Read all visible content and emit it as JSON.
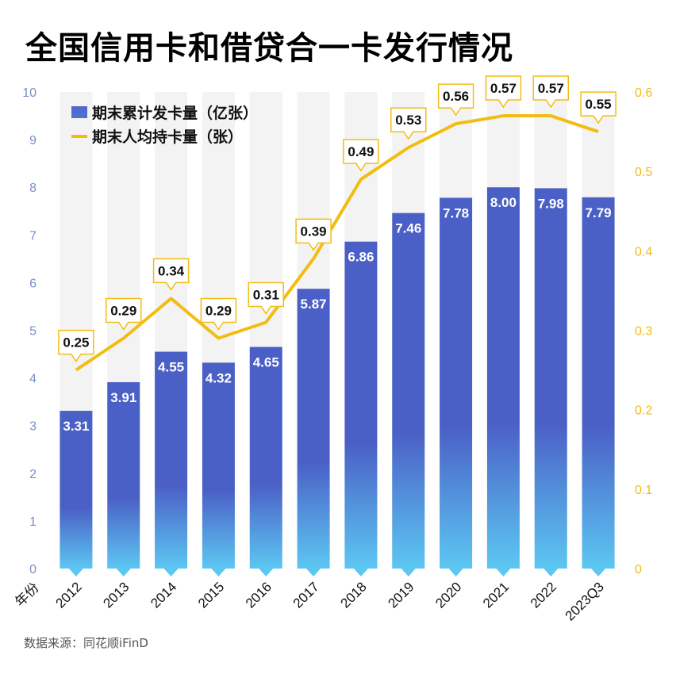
{
  "title": "全国信用卡和借贷合一卡发行情况",
  "source": "数据来源：同花顺iFinD",
  "colors": {
    "bar_top": "#4b60c6",
    "bar_bottom": "#5cc7f2",
    "line": "#f2bd13",
    "left_axis_text": "#7b8fc7",
    "right_axis_text": "#f2bd13",
    "stripe": "#f3f3f3"
  },
  "chart_data": {
    "type": "bar+line",
    "xlabel": "年份",
    "categories": [
      "2012",
      "2013",
      "2014",
      "2015",
      "2016",
      "2017",
      "2018",
      "2019",
      "2020",
      "2021",
      "2022",
      "2023Q3"
    ],
    "series": [
      {
        "name": "期末累计发卡量（亿张）",
        "type": "bar",
        "axis": "left",
        "values": [
          3.31,
          3.91,
          4.55,
          4.32,
          4.65,
          5.87,
          6.86,
          7.46,
          7.78,
          8.0,
          7.98,
          7.79
        ],
        "labels": [
          "3.31",
          "3.91",
          "4.55",
          "4.32",
          "4.65",
          "5.87",
          "6.86",
          "7.46",
          "7.78",
          "8.00",
          "7.98",
          "7.79"
        ]
      },
      {
        "name": "期末人均持卡量（张）",
        "type": "line",
        "axis": "right",
        "values": [
          0.25,
          0.29,
          0.34,
          0.29,
          0.31,
          0.39,
          0.49,
          0.53,
          0.56,
          0.57,
          0.57,
          0.55
        ],
        "labels": [
          "0.25",
          "0.29",
          "0.34",
          "0.29",
          "0.31",
          "0.39",
          "0.49",
          "0.53",
          "0.56",
          "0.57",
          "0.57",
          "0.55"
        ]
      }
    ],
    "left_axis": {
      "ylim": [
        0,
        10
      ],
      "ticks": [
        "0",
        "1",
        "2",
        "3",
        "4",
        "5",
        "6",
        "7",
        "8",
        "9",
        "10"
      ]
    },
    "right_axis": {
      "ylim": [
        0,
        0.6
      ],
      "ticks": [
        "0",
        "0.1",
        "0.2",
        "0.3",
        "0.4",
        "0.5",
        "0.6"
      ]
    },
    "legend_position": "top-left",
    "grid": false
  }
}
